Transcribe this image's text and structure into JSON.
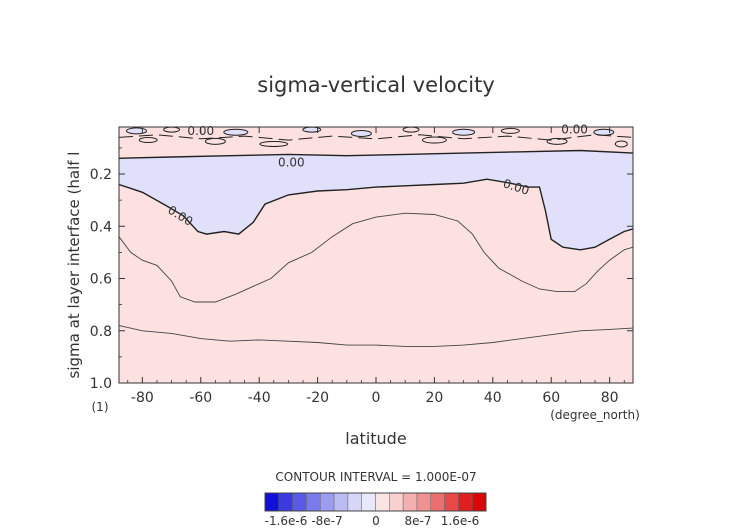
{
  "chart_data": {
    "type": "heatmap",
    "title": "sigma-vertical velocity",
    "xlabel": "latitude",
    "ylabel": "sigma at layer interface (half l",
    "x_unit": "(degree_north)",
    "y_unit": "(1)",
    "xlim": [
      -88,
      88
    ],
    "ylim": [
      0.02,
      1.0
    ],
    "y_inverted": true,
    "x_ticks": [
      -80,
      -60,
      -40,
      -20,
      0,
      20,
      40,
      60,
      80
    ],
    "x_tick_labels": [
      "-80",
      "-60",
      "-40",
      "-20",
      "0",
      "20",
      "40",
      "60",
      "80"
    ],
    "y_ticks": [
      0.2,
      0.4,
      0.6,
      0.8,
      1.0
    ],
    "y_tick_labels": [
      "0.2",
      "0.4",
      "0.6",
      "0.8",
      "1.0"
    ],
    "contour_labels": [
      {
        "text": "0.00",
        "lat": -60,
        "sigma": 0.035
      },
      {
        "text": "0.00",
        "lat": -29,
        "sigma": 0.155
      },
      {
        "text": "0.00",
        "lat": -67,
        "sigma": 0.36
      },
      {
        "text": "0.00",
        "lat": 48,
        "sigma": 0.25
      },
      {
        "text": "0.00",
        "lat": 68,
        "sigma": 0.03
      }
    ],
    "zero_contour": {
      "upper_boundary": [
        [
          -88,
          0.14
        ],
        [
          -70,
          0.135
        ],
        [
          -50,
          0.13
        ],
        [
          -30,
          0.125
        ],
        [
          -10,
          0.13
        ],
        [
          10,
          0.125
        ],
        [
          30,
          0.12
        ],
        [
          50,
          0.115
        ],
        [
          70,
          0.11
        ],
        [
          88,
          0.12
        ]
      ],
      "lower_boundary": [
        [
          -88,
          0.24
        ],
        [
          -80,
          0.27
        ],
        [
          -72,
          0.32
        ],
        [
          -66,
          0.36
        ],
        [
          -61,
          0.42
        ],
        [
          -58,
          0.43
        ],
        [
          -52,
          0.42
        ],
        [
          -47,
          0.43
        ],
        [
          -42,
          0.385
        ],
        [
          -38,
          0.315
        ],
        [
          -30,
          0.28
        ],
        [
          -20,
          0.265
        ],
        [
          -10,
          0.26
        ],
        [
          0,
          0.25
        ],
        [
          10,
          0.245
        ],
        [
          20,
          0.24
        ],
        [
          30,
          0.235
        ],
        [
          38,
          0.22
        ],
        [
          46,
          0.235
        ],
        [
          52,
          0.25
        ],
        [
          56,
          0.25
        ],
        [
          58,
          0.34
        ],
        [
          60,
          0.45
        ],
        [
          64,
          0.48
        ],
        [
          70,
          0.49
        ],
        [
          75,
          0.48
        ],
        [
          80,
          0.45
        ],
        [
          85,
          0.42
        ],
        [
          88,
          0.41
        ]
      ]
    },
    "secondary_contours": [
      {
        "level": "1e-7",
        "points": [
          [
            -88,
            0.44
          ],
          [
            -84,
            0.5
          ],
          [
            -80,
            0.53
          ],
          [
            -75,
            0.55
          ],
          [
            -70,
            0.61
          ],
          [
            -67,
            0.67
          ],
          [
            -62,
            0.69
          ],
          [
            -55,
            0.69
          ],
          [
            -48,
            0.66
          ],
          [
            -42,
            0.63
          ],
          [
            -36,
            0.6
          ],
          [
            -30,
            0.54
          ],
          [
            -22,
            0.5
          ],
          [
            -15,
            0.44
          ],
          [
            -8,
            0.39
          ],
          [
            0,
            0.365
          ],
          [
            10,
            0.35
          ],
          [
            20,
            0.355
          ],
          [
            28,
            0.38
          ],
          [
            33,
            0.43
          ],
          [
            37,
            0.5
          ],
          [
            42,
            0.56
          ],
          [
            50,
            0.61
          ],
          [
            56,
            0.64
          ],
          [
            62,
            0.65
          ],
          [
            68,
            0.65
          ],
          [
            72,
            0.62
          ],
          [
            76,
            0.57
          ],
          [
            80,
            0.53
          ],
          [
            85,
            0.49
          ],
          [
            88,
            0.48
          ]
        ]
      },
      {
        "level": "2e-7",
        "points": [
          [
            -88,
            0.78
          ],
          [
            -80,
            0.8
          ],
          [
            -70,
            0.81
          ],
          [
            -60,
            0.83
          ],
          [
            -50,
            0.84
          ],
          [
            -40,
            0.835
          ],
          [
            -30,
            0.84
          ],
          [
            -20,
            0.845
          ],
          [
            -10,
            0.855
          ],
          [
            0,
            0.855
          ],
          [
            10,
            0.86
          ],
          [
            20,
            0.86
          ],
          [
            30,
            0.855
          ],
          [
            40,
            0.845
          ],
          [
            50,
            0.83
          ],
          [
            60,
            0.815
          ],
          [
            70,
            0.8
          ],
          [
            80,
            0.795
          ],
          [
            88,
            0.79
          ]
        ]
      }
    ],
    "colorbar": {
      "title": "CONTOUR INTERVAL = 1.000E-07",
      "tick_labels": [
        "-1.6e-6",
        "-8e-7",
        "0",
        "8e-7",
        "1.6e-6"
      ],
      "colors": [
        "#1010d8",
        "#3a3ae0",
        "#5a5ae6",
        "#7a7aec",
        "#9c9cf0",
        "#bcbcf4",
        "#d6d6f8",
        "#e8e8fb",
        "#fbe4e4",
        "#f8d0d0",
        "#f4b0b0",
        "#f09090",
        "#ec6e6e",
        "#e84848",
        "#e02020",
        "#d80808"
      ]
    },
    "colors": {
      "positive_fill": "#fde0e0",
      "negative_fill": "#e0e0fb"
    }
  }
}
